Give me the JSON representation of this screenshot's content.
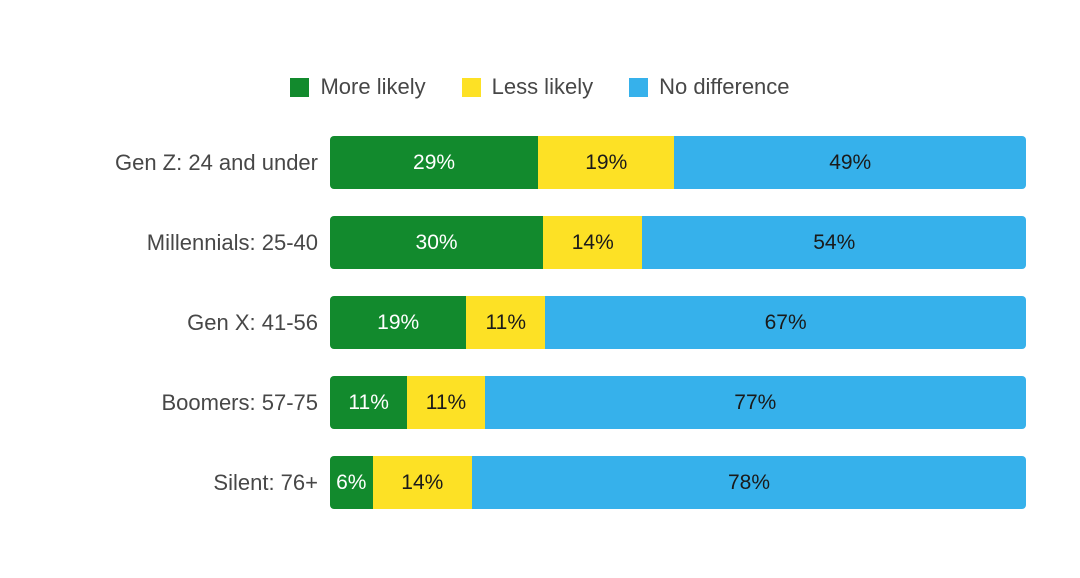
{
  "chart_data": {
    "type": "bar",
    "orientation": "horizontal",
    "stacked": true,
    "normalized_rows": true,
    "legend_position": "top",
    "value_suffix": "%",
    "categories": [
      "Gen Z: 24 and under",
      "Millennials: 25-40",
      "Gen X: 41-56",
      "Boomers: 57-75",
      "Silent: 76+"
    ],
    "series": [
      {
        "name": "More likely",
        "color": "#128a2d",
        "label_color": "#ffffff",
        "values": [
          29,
          30,
          19,
          11,
          6
        ]
      },
      {
        "name": "Less likely",
        "color": "#fde125",
        "label_color": "#1a1a1a",
        "values": [
          19,
          14,
          11,
          11,
          14
        ]
      },
      {
        "name": "No difference",
        "color": "#36b1eb",
        "label_color": "#1a1a1a",
        "values": [
          49,
          54,
          67,
          77,
          78
        ]
      }
    ],
    "title": "",
    "xlabel": "",
    "ylabel": "",
    "text_color": "#474747",
    "background_color": "#ffffff"
  }
}
